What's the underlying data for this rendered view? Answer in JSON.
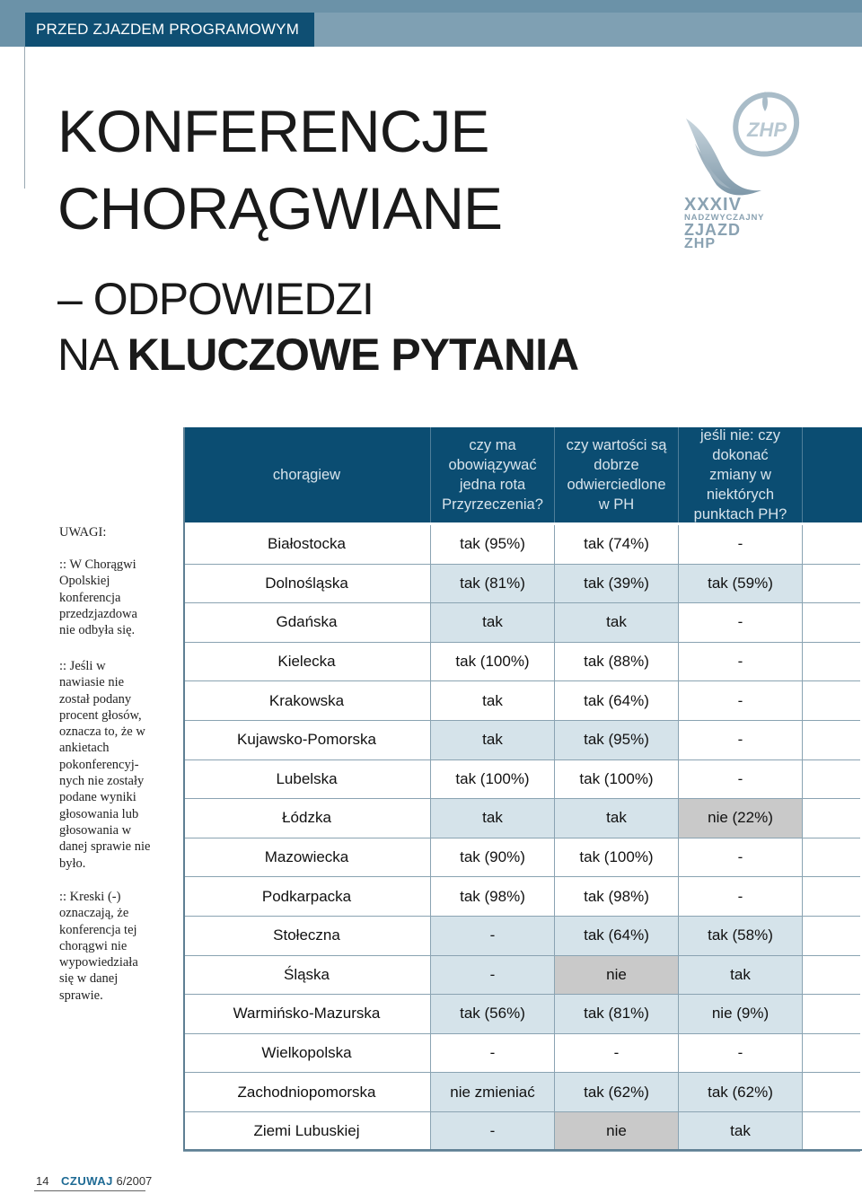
{
  "banner": {
    "section": "PRZED ZJAZDEM PROGRAMOWYM"
  },
  "title": {
    "line1": "KONFERENCJE",
    "line2": "CHORĄGWIANE",
    "line3": "– ODPOWIEDZI",
    "line4_prefix": "NA ",
    "line4_bold": "KLUCZOWE PYTANIA"
  },
  "logo": {
    "line1": "XXXIV",
    "line2": "NADZWYCZAJNY",
    "line3": "ZJAZD",
    "line4": "ZHP",
    "emblem": "ZHP"
  },
  "notes": {
    "heading": "UWAGI:",
    "note1": ":: W Chorągwi Opolskiej konferencja przedzjazdowa nie odbyła się.",
    "note2": ":: Jeśli w nawiasie nie został podany procent głosów, oznacza to, że w ankietach pokonferencyj-nych nie zostały podane wyniki głosowania lub głosowania w danej sprawie nie było.",
    "note3": ":: Kreski (-) oznaczają, że konferencja tej chorągwi nie wypowiedziała się w danej sprawie."
  },
  "table": {
    "headers": [
      "chorągiew",
      "czy ma obowiązywać jedna rota Przyrzeczenia?",
      "czy wartości są dobrze odwierciedlone w PH",
      "jeśli nie: czy dokonać zmiany w niektórych punktach PH?"
    ],
    "rows": [
      {
        "name": "Białostocka",
        "q1": "tak (95%)",
        "q2": "tak (74%)",
        "q3": "-"
      },
      {
        "name": "Dolnośląska",
        "q1": "tak (81%)",
        "q2": "tak (39%)",
        "q3": "tak (59%)"
      },
      {
        "name": "Gdańska",
        "q1": "tak",
        "q2": "tak",
        "q3": "-"
      },
      {
        "name": "Kielecka",
        "q1": "tak (100%)",
        "q2": "tak (88%)",
        "q3": "-"
      },
      {
        "name": "Krakowska",
        "q1": "tak",
        "q2": "tak (64%)",
        "q3": "-"
      },
      {
        "name": "Kujawsko-Pomorska",
        "q1": "tak",
        "q2": "tak (95%)",
        "q3": "-"
      },
      {
        "name": "Lubelska",
        "q1": "tak (100%)",
        "q2": "tak (100%)",
        "q3": "-"
      },
      {
        "name": "Łódzka",
        "q1": "tak",
        "q2": "tak",
        "q3": "nie (22%)"
      },
      {
        "name": "Mazowiecka",
        "q1": "tak (90%)",
        "q2": "tak (100%)",
        "q3": "-"
      },
      {
        "name": "Podkarpacka",
        "q1": "tak (98%)",
        "q2": "tak (98%)",
        "q3": "-"
      },
      {
        "name": "Stołeczna",
        "q1": "-",
        "q2": "tak (64%)",
        "q3": "tak (58%)"
      },
      {
        "name": "Śląska",
        "q1": "-",
        "q2": "nie",
        "q3": "tak"
      },
      {
        "name": "Warmińsko-Mazurska",
        "q1": "tak (56%)",
        "q2": "tak (81%)",
        "q3": "nie (9%)"
      },
      {
        "name": "Wielkopolska",
        "q1": "-",
        "q2": "-",
        "q3": "-"
      },
      {
        "name": "Zachodniopomorska",
        "q1": "nie zmieniać",
        "q2": "tak (62%)",
        "q3": "tak (62%)"
      },
      {
        "name": "Ziemi Lubuskiej",
        "q1": "-",
        "q2": "nie",
        "q3": "tak"
      }
    ],
    "colors": {
      "header": "#0b4d72",
      "light": "#d5e3ea",
      "gray": "#c9c9c9",
      "white": "#ffffff"
    }
  },
  "footer": {
    "page": "14",
    "magazine": "CZUWAJ",
    "issue": "6/2007"
  }
}
